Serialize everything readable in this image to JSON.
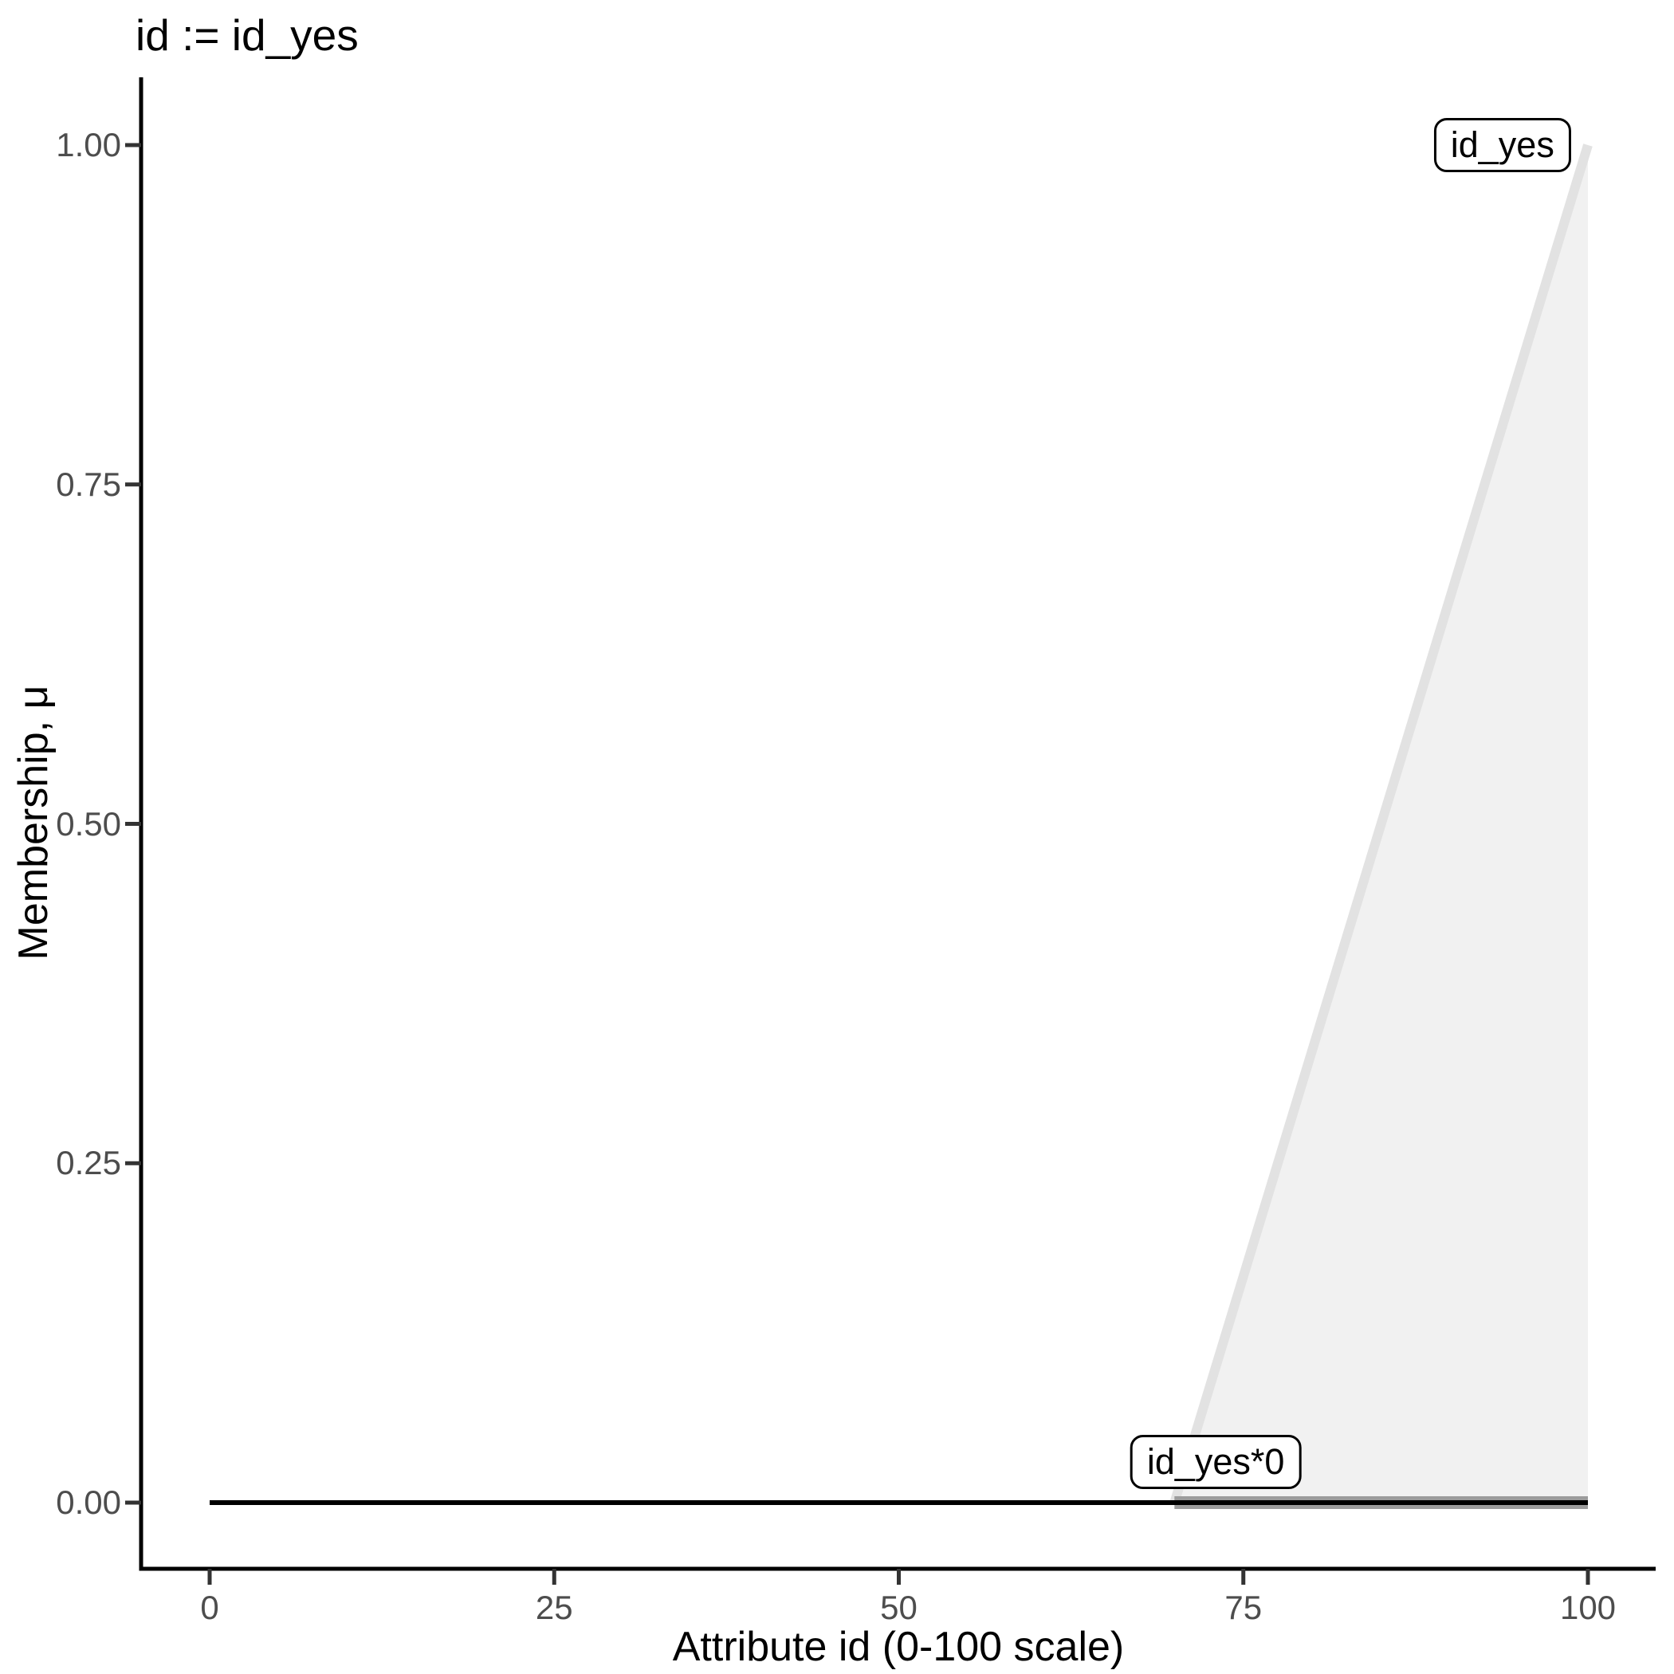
{
  "figure": {
    "background": "#ffffff"
  },
  "chart_data": {
    "type": "area",
    "title": "id := id_yes",
    "xlabel": "Attribute id (0-100 scale)",
    "ylabel": "Membership, μ",
    "xlim": [
      0,
      100
    ],
    "ylim": [
      0,
      1
    ],
    "grid": false,
    "legend": "none",
    "x_ticks": [
      {
        "value": 0,
        "label": "0"
      },
      {
        "value": 25,
        "label": "25"
      },
      {
        "value": 50,
        "label": "50"
      },
      {
        "value": 75,
        "label": "75"
      },
      {
        "value": 100,
        "label": "100"
      }
    ],
    "y_ticks": [
      {
        "value": 0,
        "label": "0.00"
      },
      {
        "value": 0.25,
        "label": "0.25"
      },
      {
        "value": 0.5,
        "label": "0.50"
      },
      {
        "value": 0.75,
        "label": "0.75"
      },
      {
        "value": 1,
        "label": "1.00"
      }
    ],
    "series": [
      {
        "name": "id_yes",
        "line_points": [
          [
            70,
            0
          ],
          [
            100,
            1
          ]
        ],
        "fill_points": [
          [
            70,
            0
          ],
          [
            100,
            1
          ],
          [
            100,
            0
          ]
        ],
        "line_color": "#e2e2e2",
        "fill_color": "#f1f1f1",
        "line_width": 12
      },
      {
        "name": "id_yes*0",
        "line_points": [
          [
            70,
            0
          ],
          [
            100,
            0
          ]
        ],
        "line_color": "#9c9c9c",
        "line_width": 16
      },
      {
        "name": "id_yes*0",
        "line_points": [
          [
            0,
            0
          ],
          [
            100,
            0
          ]
        ],
        "line_color": "#000000",
        "line_width": 6
      }
    ],
    "annotations": [
      {
        "label": "id_yes",
        "x": 93.8,
        "y": 1.0
      },
      {
        "label": "id_yes*0",
        "x": 73.0,
        "y": 0.03
      }
    ],
    "theme": {
      "axis_color": "#000000",
      "tick_color": "#333333",
      "tick_label_color": "#4d4d4d",
      "text_color": "#000000",
      "panel_background": "#ffffff"
    }
  }
}
